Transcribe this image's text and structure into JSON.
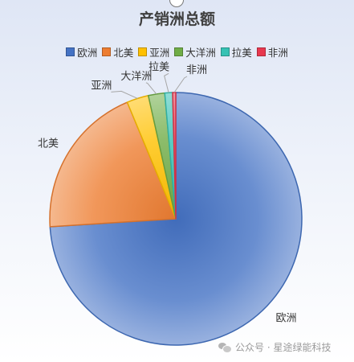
{
  "chart_data": {
    "type": "pie",
    "title": "产销洲总额",
    "legend_position": "top",
    "categories": [
      "欧洲",
      "北美",
      "亚洲",
      "大洋洲",
      "拉美",
      "非洲"
    ],
    "values": [
      74.0,
      19.7,
      2.8,
      2.1,
      1.0,
      0.4
    ],
    "colors": [
      "#4472c4",
      "#ed7d31",
      "#ffc000",
      "#70ad47",
      "#36c2b4",
      "#e8384f"
    ]
  },
  "watermark": {
    "icon": "wechat-icon",
    "text": "公众号 · 星途绿能科技"
  }
}
